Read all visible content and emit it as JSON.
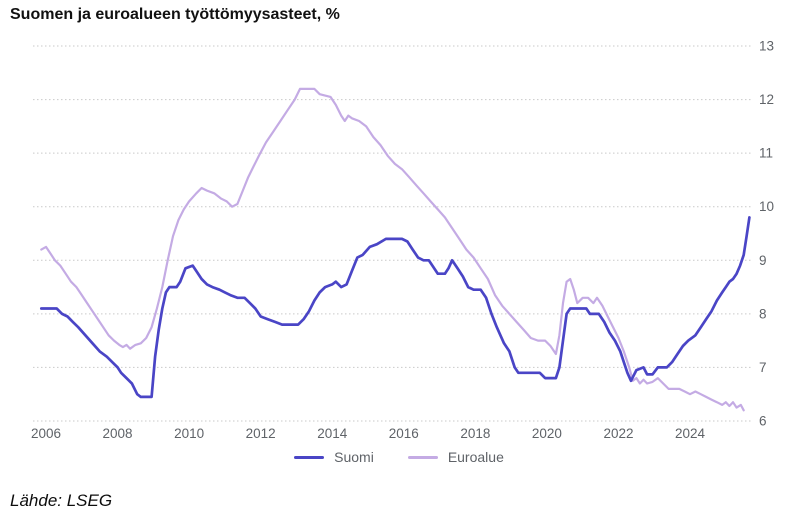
{
  "title": "Suomen ja euroalueen työttömyysasteet, %",
  "source": "Lähde: LSEG",
  "colors": {
    "suomi_line": "#4a45c6",
    "euroalue_line": "#c4abe4",
    "grid": "#c9c9c9",
    "axis_text": "#5f6368",
    "title_text": "#111111"
  },
  "chart_data": {
    "type": "line",
    "title": "Suomen ja euroalueen työttömyysasteet, %",
    "xlabel": "",
    "ylabel": "",
    "y_axis_side": "right",
    "grid": "horizontal-dotted",
    "legend_position": "bottom-center",
    "x_ticks": [
      2006,
      2008,
      2010,
      2012,
      2014,
      2016,
      2018,
      2020,
      2022,
      2024
    ],
    "y_ticks": [
      6,
      7,
      8,
      9,
      10,
      11,
      12,
      13
    ],
    "x_range": [
      2005.85,
      2025.75
    ],
    "y_range": [
      6,
      13
    ],
    "series": [
      {
        "name": "Euroalue",
        "color": "#c4abe4",
        "points": [
          [
            2005.87,
            9.2
          ],
          [
            2006.0,
            9.25
          ],
          [
            2006.1,
            9.15
          ],
          [
            2006.25,
            9.0
          ],
          [
            2006.4,
            8.9
          ],
          [
            2006.55,
            8.75
          ],
          [
            2006.7,
            8.6
          ],
          [
            2006.85,
            8.5
          ],
          [
            2007.0,
            8.35
          ],
          [
            2007.15,
            8.2
          ],
          [
            2007.3,
            8.05
          ],
          [
            2007.45,
            7.9
          ],
          [
            2007.6,
            7.75
          ],
          [
            2007.75,
            7.6
          ],
          [
            2007.9,
            7.5
          ],
          [
            2008.05,
            7.42
          ],
          [
            2008.15,
            7.38
          ],
          [
            2008.25,
            7.42
          ],
          [
            2008.35,
            7.35
          ],
          [
            2008.5,
            7.42
          ],
          [
            2008.65,
            7.45
          ],
          [
            2008.8,
            7.55
          ],
          [
            2008.95,
            7.75
          ],
          [
            2009.1,
            8.1
          ],
          [
            2009.25,
            8.5
          ],
          [
            2009.4,
            9.0
          ],
          [
            2009.55,
            9.45
          ],
          [
            2009.7,
            9.75
          ],
          [
            2009.85,
            9.95
          ],
          [
            2010.0,
            10.1
          ],
          [
            2010.2,
            10.25
          ],
          [
            2010.35,
            10.35
          ],
          [
            2010.5,
            10.3
          ],
          [
            2010.7,
            10.25
          ],
          [
            2010.9,
            10.15
          ],
          [
            2011.05,
            10.1
          ],
          [
            2011.2,
            10.0
          ],
          [
            2011.35,
            10.05
          ],
          [
            2011.5,
            10.3
          ],
          [
            2011.65,
            10.55
          ],
          [
            2011.8,
            10.75
          ],
          [
            2011.95,
            10.95
          ],
          [
            2012.15,
            11.2
          ],
          [
            2012.35,
            11.4
          ],
          [
            2012.55,
            11.6
          ],
          [
            2012.75,
            11.8
          ],
          [
            2012.95,
            12.0
          ],
          [
            2013.1,
            12.2
          ],
          [
            2013.5,
            12.2
          ],
          [
            2013.65,
            12.1
          ],
          [
            2013.95,
            12.05
          ],
          [
            2014.1,
            11.9
          ],
          [
            2014.25,
            11.7
          ],
          [
            2014.35,
            11.6
          ],
          [
            2014.45,
            11.7
          ],
          [
            2014.55,
            11.65
          ],
          [
            2014.75,
            11.6
          ],
          [
            2014.95,
            11.5
          ],
          [
            2015.15,
            11.3
          ],
          [
            2015.35,
            11.15
          ],
          [
            2015.55,
            10.95
          ],
          [
            2015.75,
            10.8
          ],
          [
            2015.95,
            10.7
          ],
          [
            2016.15,
            10.55
          ],
          [
            2016.35,
            10.4
          ],
          [
            2016.55,
            10.25
          ],
          [
            2016.75,
            10.1
          ],
          [
            2016.95,
            9.95
          ],
          [
            2017.15,
            9.8
          ],
          [
            2017.35,
            9.6
          ],
          [
            2017.55,
            9.4
          ],
          [
            2017.75,
            9.2
          ],
          [
            2017.95,
            9.05
          ],
          [
            2018.15,
            8.85
          ],
          [
            2018.35,
            8.65
          ],
          [
            2018.55,
            8.35
          ],
          [
            2018.75,
            8.15
          ],
          [
            2018.95,
            8.0
          ],
          [
            2019.15,
            7.85
          ],
          [
            2019.35,
            7.7
          ],
          [
            2019.55,
            7.55
          ],
          [
            2019.75,
            7.5
          ],
          [
            2019.95,
            7.5
          ],
          [
            2020.1,
            7.4
          ],
          [
            2020.25,
            7.25
          ],
          [
            2020.35,
            7.6
          ],
          [
            2020.45,
            8.2
          ],
          [
            2020.55,
            8.6
          ],
          [
            2020.65,
            8.65
          ],
          [
            2020.75,
            8.45
          ],
          [
            2020.85,
            8.2
          ],
          [
            2021.0,
            8.3
          ],
          [
            2021.15,
            8.3
          ],
          [
            2021.3,
            8.2
          ],
          [
            2021.4,
            8.3
          ],
          [
            2021.55,
            8.15
          ],
          [
            2021.7,
            7.95
          ],
          [
            2021.85,
            7.75
          ],
          [
            2022.0,
            7.55
          ],
          [
            2022.15,
            7.3
          ],
          [
            2022.3,
            7.0
          ],
          [
            2022.4,
            6.75
          ],
          [
            2022.5,
            6.8
          ],
          [
            2022.6,
            6.7
          ],
          [
            2022.7,
            6.77
          ],
          [
            2022.8,
            6.7
          ],
          [
            2022.95,
            6.73
          ],
          [
            2023.1,
            6.8
          ],
          [
            2023.25,
            6.7
          ],
          [
            2023.4,
            6.6
          ],
          [
            2023.7,
            6.6
          ],
          [
            2023.85,
            6.55
          ],
          [
            2024.0,
            6.5
          ],
          [
            2024.15,
            6.55
          ],
          [
            2024.3,
            6.5
          ],
          [
            2024.45,
            6.45
          ],
          [
            2024.6,
            6.4
          ],
          [
            2024.75,
            6.35
          ],
          [
            2024.9,
            6.3
          ],
          [
            2025.0,
            6.35
          ],
          [
            2025.1,
            6.28
          ],
          [
            2025.2,
            6.35
          ],
          [
            2025.3,
            6.25
          ],
          [
            2025.42,
            6.3
          ],
          [
            2025.5,
            6.2
          ]
        ]
      },
      {
        "name": "Suomi",
        "color": "#4a45c6",
        "points": [
          [
            2005.87,
            8.1
          ],
          [
            2006.3,
            8.1
          ],
          [
            2006.45,
            8.0
          ],
          [
            2006.6,
            7.95
          ],
          [
            2006.75,
            7.85
          ],
          [
            2006.9,
            7.75
          ],
          [
            2007.1,
            7.6
          ],
          [
            2007.3,
            7.45
          ],
          [
            2007.5,
            7.3
          ],
          [
            2007.7,
            7.2
          ],
          [
            2007.85,
            7.1
          ],
          [
            2008.0,
            7.0
          ],
          [
            2008.1,
            6.9
          ],
          [
            2008.25,
            6.8
          ],
          [
            2008.4,
            6.7
          ],
          [
            2008.55,
            6.5
          ],
          [
            2008.65,
            6.45
          ],
          [
            2008.95,
            6.45
          ],
          [
            2009.05,
            7.2
          ],
          [
            2009.15,
            7.7
          ],
          [
            2009.25,
            8.1
          ],
          [
            2009.35,
            8.4
          ],
          [
            2009.45,
            8.5
          ],
          [
            2009.65,
            8.5
          ],
          [
            2009.75,
            8.6
          ],
          [
            2009.9,
            8.85
          ],
          [
            2010.1,
            8.9
          ],
          [
            2010.2,
            8.8
          ],
          [
            2010.35,
            8.65
          ],
          [
            2010.5,
            8.55
          ],
          [
            2010.65,
            8.5
          ],
          [
            2010.85,
            8.45
          ],
          [
            2011.0,
            8.4
          ],
          [
            2011.15,
            8.35
          ],
          [
            2011.35,
            8.3
          ],
          [
            2011.55,
            8.3
          ],
          [
            2011.7,
            8.2
          ],
          [
            2011.85,
            8.1
          ],
          [
            2012.0,
            7.95
          ],
          [
            2012.2,
            7.9
          ],
          [
            2012.4,
            7.85
          ],
          [
            2012.6,
            7.8
          ],
          [
            2013.05,
            7.8
          ],
          [
            2013.2,
            7.9
          ],
          [
            2013.35,
            8.05
          ],
          [
            2013.5,
            8.25
          ],
          [
            2013.65,
            8.4
          ],
          [
            2013.8,
            8.5
          ],
          [
            2014.0,
            8.55
          ],
          [
            2014.1,
            8.6
          ],
          [
            2014.25,
            8.5
          ],
          [
            2014.4,
            8.55
          ],
          [
            2014.55,
            8.8
          ],
          [
            2014.7,
            9.05
          ],
          [
            2014.85,
            9.1
          ],
          [
            2015.05,
            9.25
          ],
          [
            2015.25,
            9.3
          ],
          [
            2015.5,
            9.4
          ],
          [
            2015.95,
            9.4
          ],
          [
            2016.1,
            9.35
          ],
          [
            2016.25,
            9.2
          ],
          [
            2016.4,
            9.05
          ],
          [
            2016.55,
            9.0
          ],
          [
            2016.7,
            9.0
          ],
          [
            2016.8,
            8.9
          ],
          [
            2016.95,
            8.75
          ],
          [
            2017.15,
            8.75
          ],
          [
            2017.25,
            8.85
          ],
          [
            2017.35,
            9.0
          ],
          [
            2017.5,
            8.85
          ],
          [
            2017.65,
            8.7
          ],
          [
            2017.8,
            8.5
          ],
          [
            2017.95,
            8.45
          ],
          [
            2018.15,
            8.45
          ],
          [
            2018.3,
            8.3
          ],
          [
            2018.45,
            8.0
          ],
          [
            2018.6,
            7.75
          ],
          [
            2018.8,
            7.45
          ],
          [
            2018.95,
            7.3
          ],
          [
            2019.1,
            7.0
          ],
          [
            2019.2,
            6.9
          ],
          [
            2019.8,
            6.9
          ],
          [
            2019.95,
            6.8
          ],
          [
            2020.25,
            6.8
          ],
          [
            2020.35,
            7.0
          ],
          [
            2020.45,
            7.5
          ],
          [
            2020.55,
            8.0
          ],
          [
            2020.65,
            8.1
          ],
          [
            2021.1,
            8.1
          ],
          [
            2021.2,
            8.0
          ],
          [
            2021.45,
            8.0
          ],
          [
            2021.6,
            7.85
          ],
          [
            2021.75,
            7.65
          ],
          [
            2021.9,
            7.5
          ],
          [
            2022.05,
            7.3
          ],
          [
            2022.15,
            7.1
          ],
          [
            2022.25,
            6.9
          ],
          [
            2022.35,
            6.75
          ],
          [
            2022.5,
            6.95
          ],
          [
            2022.7,
            7.0
          ],
          [
            2022.8,
            6.87
          ],
          [
            2022.95,
            6.87
          ],
          [
            2023.1,
            7.0
          ],
          [
            2023.35,
            7.0
          ],
          [
            2023.5,
            7.1
          ],
          [
            2023.65,
            7.25
          ],
          [
            2023.8,
            7.4
          ],
          [
            2023.95,
            7.5
          ],
          [
            2024.15,
            7.6
          ],
          [
            2024.3,
            7.75
          ],
          [
            2024.45,
            7.9
          ],
          [
            2024.6,
            8.05
          ],
          [
            2024.75,
            8.25
          ],
          [
            2024.9,
            8.4
          ],
          [
            2025.0,
            8.5
          ],
          [
            2025.1,
            8.6
          ],
          [
            2025.2,
            8.65
          ],
          [
            2025.3,
            8.75
          ],
          [
            2025.4,
            8.9
          ],
          [
            2025.5,
            9.1
          ],
          [
            2025.58,
            9.45
          ],
          [
            2025.66,
            9.8
          ]
        ]
      }
    ]
  },
  "legend": {
    "suomi_label": "Suomi",
    "euroalue_label": "Euroalue"
  }
}
